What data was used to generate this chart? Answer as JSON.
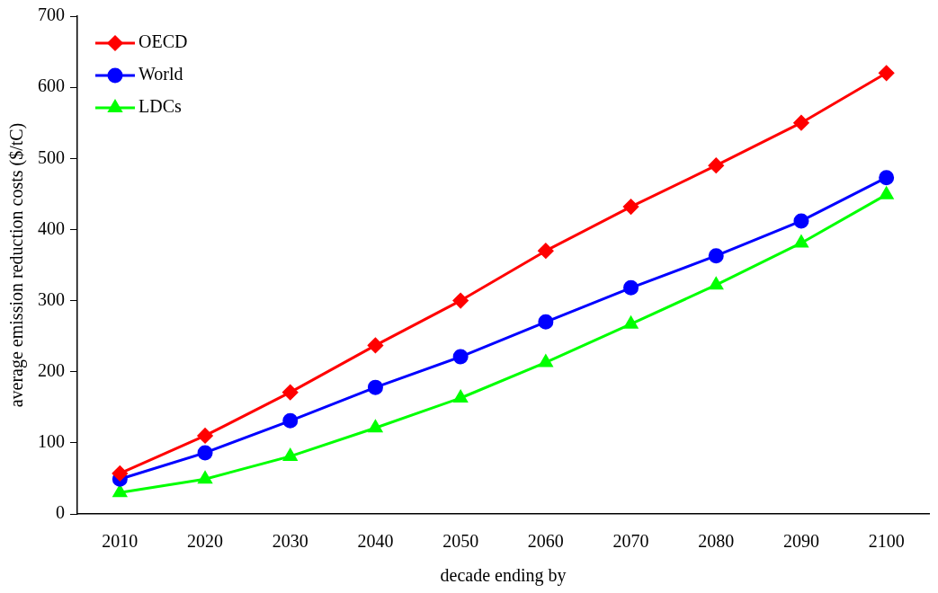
{
  "chart_data": {
    "type": "line",
    "xlabel": "decade ending by",
    "ylabel": "average emission reduction costs ($/tC)",
    "categories": [
      "2010",
      "2020",
      "2030",
      "2040",
      "2050",
      "2060",
      "2070",
      "2080",
      "2090",
      "2100"
    ],
    "series": [
      {
        "name": "OECD",
        "color": "#ff0000",
        "marker": "diamond",
        "values": [
          57,
          110,
          171,
          237,
          300,
          370,
          432,
          490,
          550,
          620
        ]
      },
      {
        "name": "World",
        "color": "#0000ff",
        "marker": "circle",
        "values": [
          49,
          86,
          131,
          178,
          221,
          270,
          318,
          363,
          412,
          473
        ]
      },
      {
        "name": "LDCs",
        "color": "#00ff00",
        "marker": "triangle",
        "values": [
          30,
          49,
          81,
          121,
          163,
          213,
          267,
          322,
          381,
          449
        ]
      }
    ],
    "ylim": [
      0,
      700
    ],
    "yticks": [
      0,
      100,
      200,
      300,
      400,
      500,
      600,
      700
    ],
    "grid": false,
    "legend": "top left",
    "line_style": "solid"
  }
}
